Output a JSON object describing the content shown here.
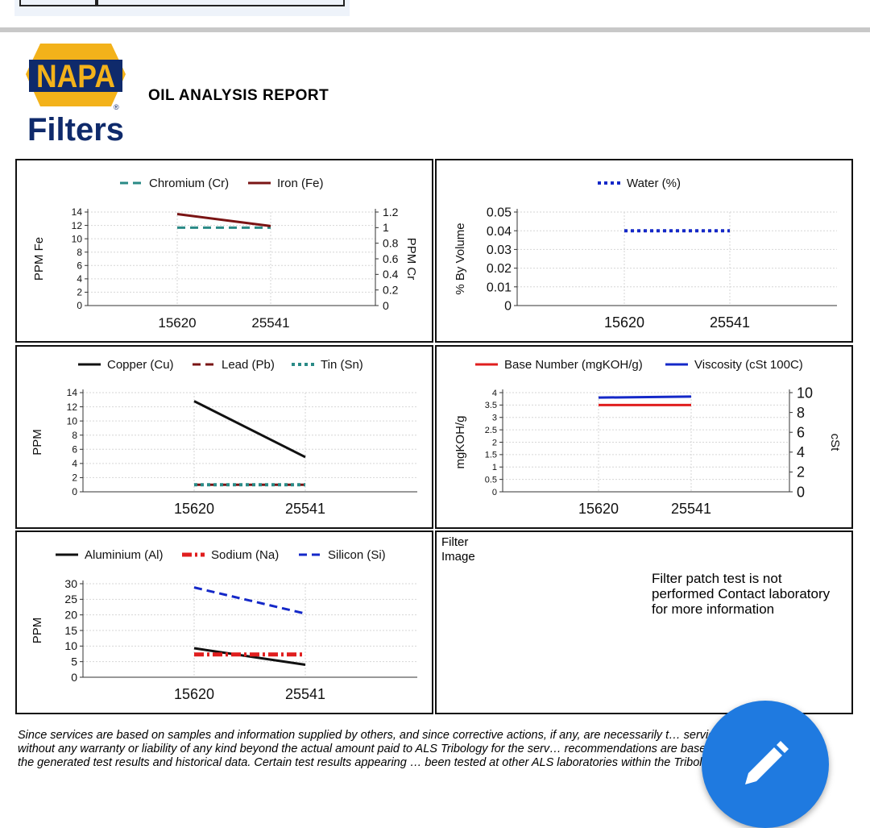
{
  "header": {
    "report_title": "OIL ANALYSIS REPORT"
  },
  "logo": {
    "brand_top": "NAPA",
    "brand_bottom": "Filters",
    "registered": "®"
  },
  "filter_panel": {
    "label": "Filter Image",
    "message": "Filter patch test is not performed Contact laboratory for more information"
  },
  "disclaimer": "Since services are based on samples and information supplied by others, and since corrective actions, if any, are necessarily t… services are rendered without any warranty or liability of any kind beyond the actual amount paid to ALS Tribology for the serv… recommendations are based on interpretations of the generated test results and historical data. Certain test results appearing … been tested at other ALS laboratories within the Tribology divisional network.",
  "fab": {
    "icon": "pencil-icon"
  },
  "chart_data": [
    {
      "id": "wear-fe-cr",
      "type": "line",
      "categories": [
        "15620",
        "25541"
      ],
      "ylabel": "PPM Fe",
      "y2label": "PPM Cr",
      "ylim": [
        0,
        14
      ],
      "yticks": [
        0,
        2,
        4,
        6,
        8,
        10,
        12,
        14
      ],
      "y2lim": [
        0,
        1.2
      ],
      "y2ticks": [
        0,
        0.2,
        0.4,
        0.6,
        0.8,
        1,
        1.2
      ],
      "legend": "top",
      "series": [
        {
          "name": "Chromium (Cr)",
          "values": [
            1,
            1
          ],
          "axis": "right",
          "color": "#2a8a86",
          "style": "dashed"
        },
        {
          "name": "Iron (Fe)",
          "values": [
            13.7,
            11.9
          ],
          "axis": "left",
          "color": "#7a1414",
          "style": "solid"
        }
      ]
    },
    {
      "id": "water",
      "type": "line",
      "categories": [
        "15620",
        "25541"
      ],
      "ylabel": "% By Volume",
      "ylim": [
        0,
        0.05
      ],
      "yticks": [
        0,
        0.01,
        0.02,
        0.03,
        0.04,
        0.05
      ],
      "legend": "top",
      "series": [
        {
          "name": "Water (%)",
          "values": [
            0.04,
            0.04
          ],
          "axis": "left",
          "color": "#1428c8",
          "style": "dotted"
        }
      ]
    },
    {
      "id": "wear-cu-pb-sn",
      "type": "line",
      "categories": [
        "15620",
        "25541"
      ],
      "ylabel": "PPM",
      "ylim": [
        0,
        14
      ],
      "yticks": [
        0,
        2,
        4,
        6,
        8,
        10,
        12,
        14
      ],
      "legend": "top",
      "series": [
        {
          "name": "Copper (Cu)",
          "values": [
            12.8,
            4.9
          ],
          "axis": "left",
          "color": "#111111",
          "style": "solid"
        },
        {
          "name": "Lead (Pb)",
          "values": [
            1,
            1
          ],
          "axis": "left",
          "color": "#7a1414",
          "style": "dashed"
        },
        {
          "name": "Tin (Sn)",
          "values": [
            1,
            1
          ],
          "axis": "left",
          "color": "#2a8a86",
          "style": "dotted"
        }
      ]
    },
    {
      "id": "bn-viscosity",
      "type": "line",
      "categories": [
        "15620",
        "25541"
      ],
      "ylabel": "mgKOH/g",
      "y2label": "cSt",
      "ylim": [
        0,
        4
      ],
      "yticks": [
        0,
        0.5,
        1,
        1.5,
        2,
        2.5,
        3,
        3.5,
        4
      ],
      "y2lim": [
        0,
        10
      ],
      "y2ticks": [
        0,
        2,
        4,
        6,
        8,
        10
      ],
      "legend": "top",
      "series": [
        {
          "name": "Base Number (mgKOH/g)",
          "values": [
            3.5,
            3.5
          ],
          "axis": "left",
          "color": "#e01e1e",
          "style": "solid"
        },
        {
          "name": "Viscosity (cSt 100C)",
          "values": [
            9.5,
            9.6
          ],
          "axis": "right",
          "color": "#1428c8",
          "style": "solid"
        }
      ]
    },
    {
      "id": "contaminants",
      "type": "line",
      "categories": [
        "15620",
        "25541"
      ],
      "ylabel": "PPM",
      "ylim": [
        0,
        30
      ],
      "yticks": [
        0,
        5,
        10,
        15,
        20,
        25,
        30
      ],
      "legend": "top",
      "series": [
        {
          "name": "Aluminium (Al)",
          "values": [
            9.3,
            4
          ],
          "axis": "left",
          "color": "#111111",
          "style": "solid"
        },
        {
          "name": "Sodium (Na)",
          "values": [
            7.3,
            7.3
          ],
          "axis": "left",
          "color": "#e01e1e",
          "style": "dashdot"
        },
        {
          "name": "Silicon (Si)",
          "values": [
            28.8,
            20.4
          ],
          "axis": "left",
          "color": "#1428c8",
          "style": "dashed"
        }
      ]
    }
  ]
}
